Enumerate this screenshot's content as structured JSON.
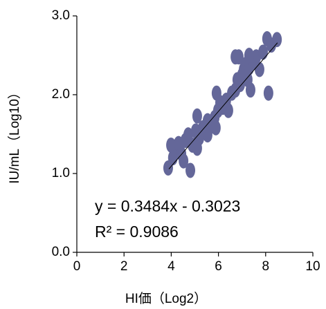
{
  "chart_data": {
    "type": "scatter",
    "xlabel": "HI価（Log2）",
    "ylabel": "IU/mL（Log10）",
    "annotations": [
      "y = 0.3484x - 0.3023",
      "R² = 0.9086"
    ],
    "xlim": [
      0,
      10
    ],
    "xticks": [
      0,
      2,
      4,
      6,
      8,
      10
    ],
    "ylim": [
      0,
      3
    ],
    "yticks": [
      {
        "value": 0,
        "label": "0.0"
      },
      {
        "value": 1,
        "label": "1.0"
      },
      {
        "value": 2,
        "label": "2.0"
      },
      {
        "value": 3,
        "label": "3.0"
      }
    ],
    "series": [
      {
        "color": "#646799",
        "x": [
          3.87,
          4.81,
          3.99,
          4.13,
          4.31,
          4.07,
          4.43,
          4.6,
          4.72,
          4.9,
          5.04,
          5.19,
          5.1,
          5.34,
          5.45,
          5.1,
          5.54,
          5.69,
          5.84,
          5.98,
          6.07,
          5.92,
          6.19,
          6.33,
          6.42,
          6.57,
          6.72,
          6.8,
          6.92,
          6.86,
          7.0,
          7.07,
          7.18,
          7.3,
          7.24,
          7.45,
          7.6,
          7.36,
          7.3,
          8.12,
          8.06,
          8.24,
          8.48,
          7.89,
          7.74,
          6.72,
          5.54,
          4.52,
          5.89
        ],
        "values": [
          1.07,
          1.04,
          1.36,
          1.32,
          1.38,
          1.2,
          1.25,
          1.42,
          1.49,
          1.36,
          1.54,
          1.45,
          1.32,
          1.58,
          1.52,
          1.73,
          1.67,
          1.6,
          1.71,
          1.8,
          1.9,
          2.02,
          1.84,
          1.93,
          1.8,
          2.02,
          2.06,
          2.19,
          2.13,
          2.48,
          2.25,
          2.32,
          2.39,
          2.34,
          2.19,
          2.41,
          2.48,
          2.06,
          2.5,
          2.02,
          2.71,
          2.63,
          2.7,
          2.54,
          2.32,
          2.48,
          1.49,
          1.16,
          1.58
        ]
      },
      {
        "type": "line",
        "color": "#000000",
        "x": [
          3.9,
          8.5
        ],
        "values": [
          1.057,
          2.659
        ]
      }
    ]
  }
}
